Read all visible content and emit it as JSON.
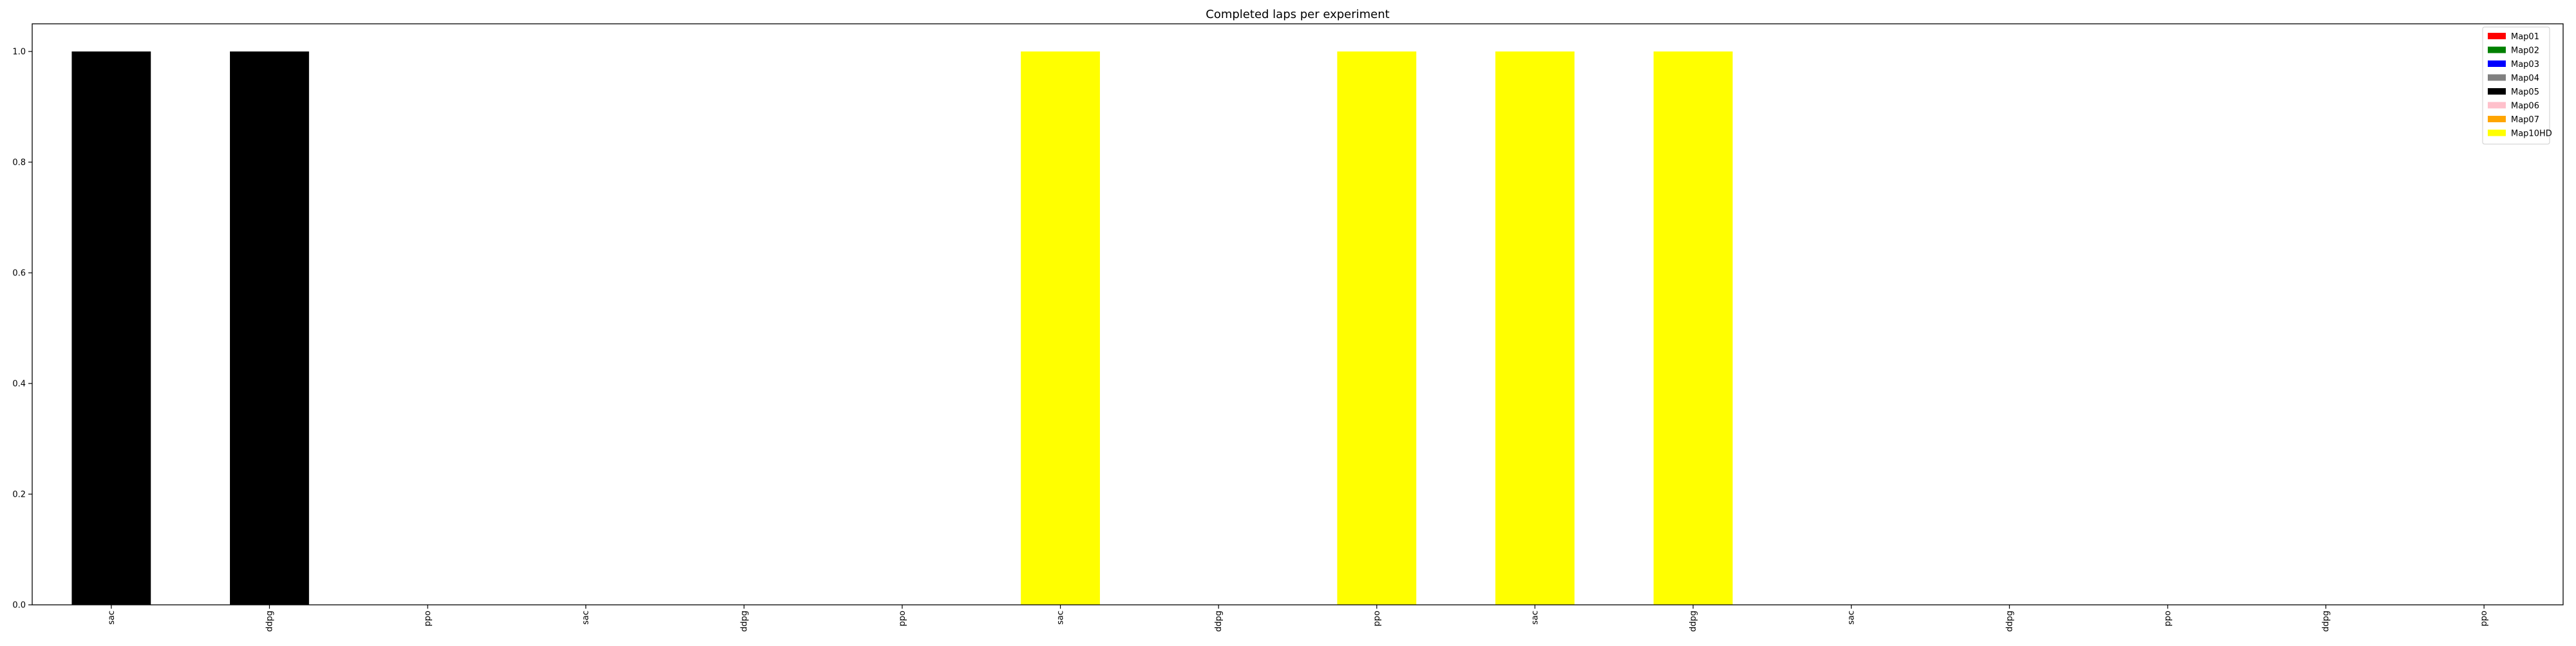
{
  "chart_data": {
    "type": "bar",
    "title": "Completed laps per experiment",
    "xlabel": "",
    "ylabel": "",
    "categories": [
      "sac",
      "ddpg",
      "ppo",
      "sac",
      "ddpg",
      "ppo",
      "sac",
      "ddpg",
      "ppo",
      "sac",
      "ddpg",
      "sac",
      "ddpg",
      "ppo",
      "ddpg",
      "ppo"
    ],
    "values": [
      1,
      1,
      0,
      0,
      0,
      0,
      1,
      0,
      1,
      1,
      1,
      0,
      0,
      0,
      0,
      0
    ],
    "bar_series": [
      "Map05",
      "Map05",
      "Map05",
      "Map05",
      "Map05",
      "Map05",
      "Map10HD",
      "Map10HD",
      "Map10HD",
      "Map10HD",
      "Map10HD",
      "Map10HD",
      "Map10HD",
      "Map10HD",
      "Map10HD",
      "Map10HD"
    ],
    "series": [
      {
        "name": "Map01",
        "color": "#ff0000"
      },
      {
        "name": "Map02",
        "color": "#008000"
      },
      {
        "name": "Map03",
        "color": "#0000ff"
      },
      {
        "name": "Map04",
        "color": "#808080"
      },
      {
        "name": "Map05",
        "color": "#000000"
      },
      {
        "name": "Map06",
        "color": "#ffc0cb"
      },
      {
        "name": "Map07",
        "color": "#ffa500"
      },
      {
        "name": "Map10HD",
        "color": "#ffff00"
      }
    ],
    "ylim": [
      0,
      1.05
    ],
    "yticks": [
      "0.0",
      "0.2",
      "0.4",
      "0.6",
      "0.8",
      "1.0"
    ],
    "grid": false,
    "legend_position": "top-right"
  }
}
